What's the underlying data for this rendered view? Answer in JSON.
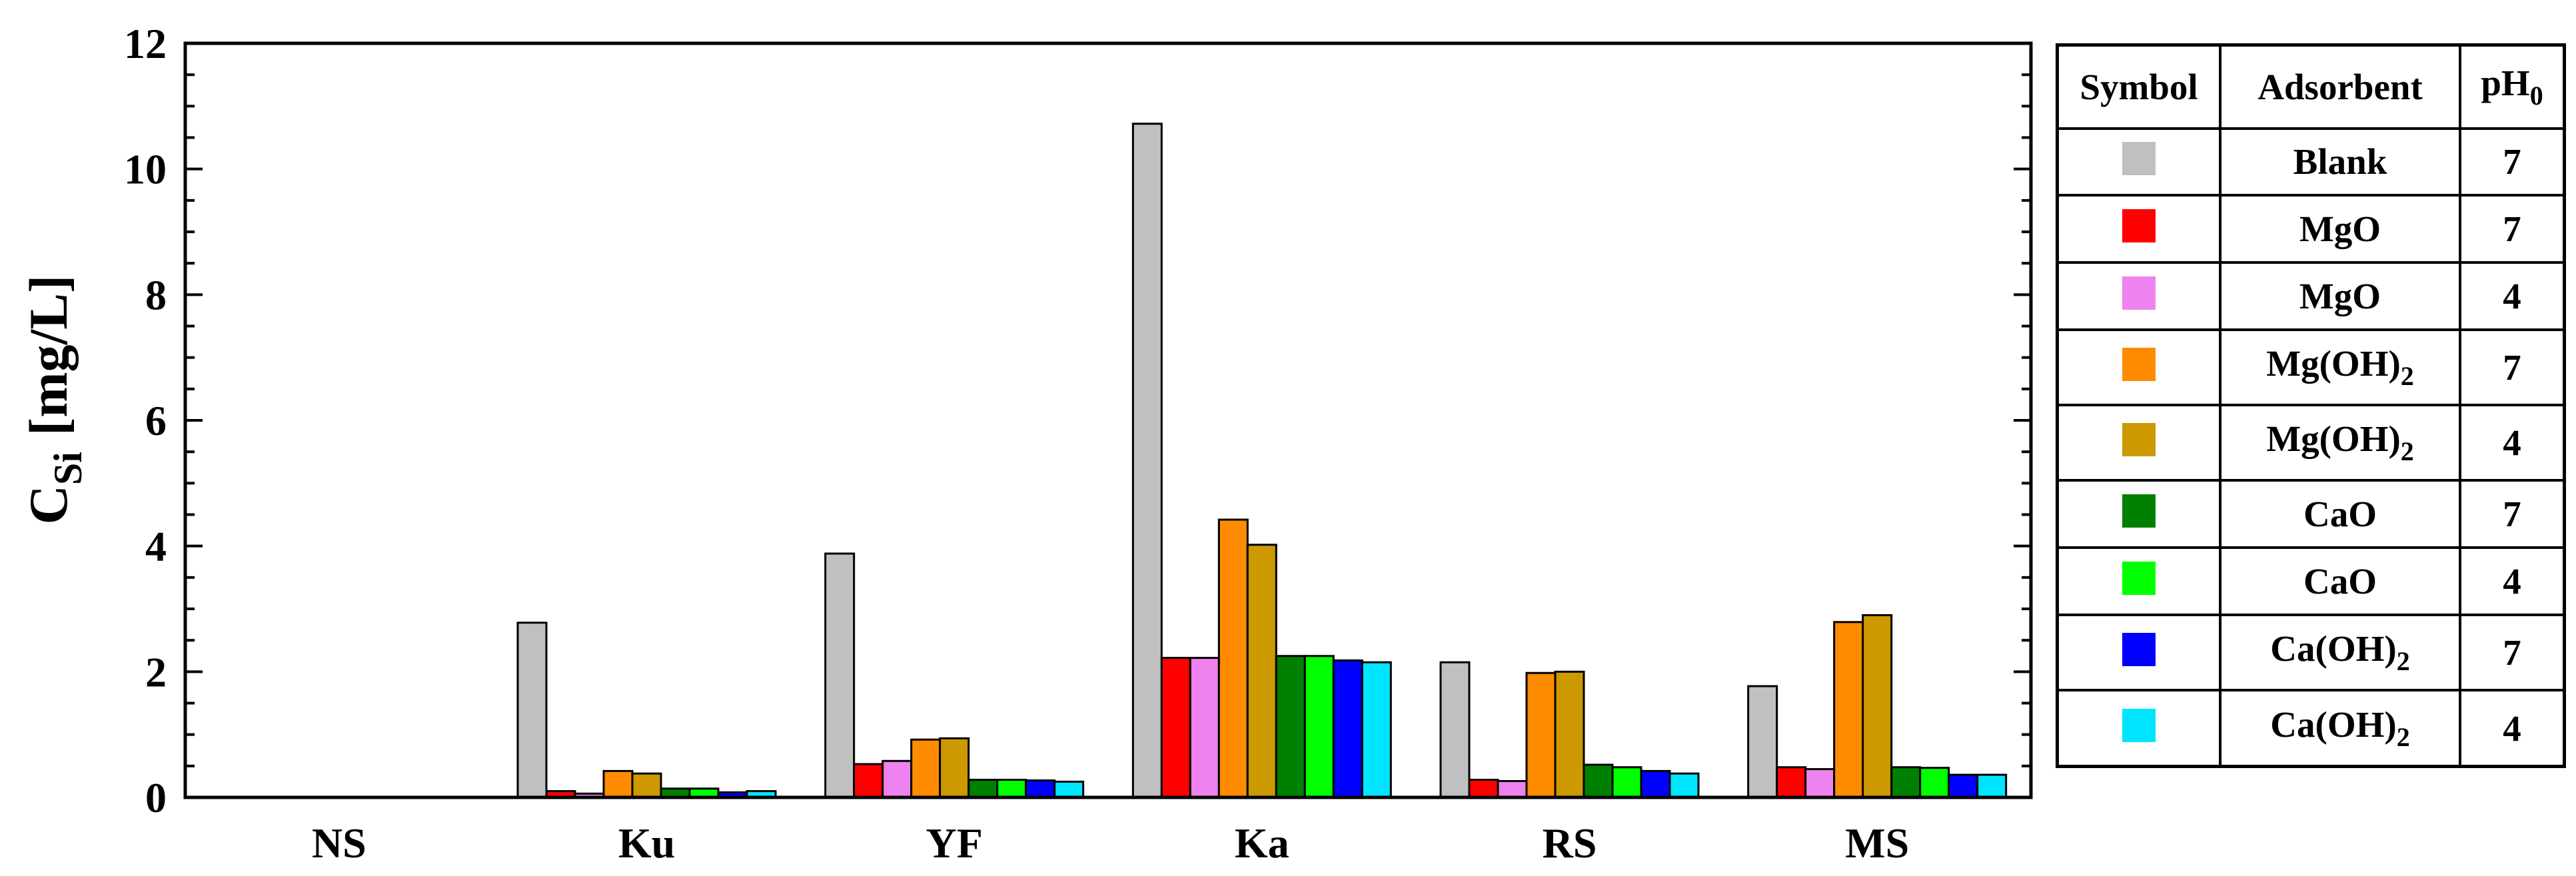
{
  "chart_data": {
    "type": "bar",
    "ylabel_main": "C",
    "ylabel_sub": "Si",
    "ylabel_unit": "[mg/L]",
    "ylim": [
      0,
      12
    ],
    "yticks": [
      "0",
      "2",
      "4",
      "6",
      "8",
      "10",
      "12"
    ],
    "categories": [
      "NS",
      "Ku",
      "YF",
      "Ka",
      "RS",
      "MS"
    ],
    "series": [
      {
        "color": "#c0c0c0",
        "values": [
          0,
          2.78,
          3.88,
          10.72,
          2.15,
          1.77
        ]
      },
      {
        "color": "#ff0000",
        "values": [
          0,
          0.1,
          0.53,
          2.22,
          0.28,
          0.48
        ]
      },
      {
        "color": "#ee82ee",
        "values": [
          0,
          0.06,
          0.58,
          2.22,
          0.26,
          0.45
        ]
      },
      {
        "color": "#ff8c00",
        "values": [
          0,
          0.42,
          0.92,
          4.42,
          1.98,
          2.79
        ]
      },
      {
        "color": "#cc9900",
        "values": [
          0,
          0.38,
          0.94,
          4.02,
          2.0,
          2.9
        ]
      },
      {
        "color": "#008000",
        "values": [
          0,
          0.14,
          0.28,
          2.25,
          0.52,
          0.48
        ]
      },
      {
        "color": "#00ff00",
        "values": [
          0,
          0.14,
          0.28,
          2.25,
          0.48,
          0.47
        ]
      },
      {
        "color": "#0000ff",
        "values": [
          0,
          0.08,
          0.27,
          2.18,
          0.42,
          0.36
        ]
      },
      {
        "color": "#00e5ff",
        "values": [
          0,
          0.1,
          0.25,
          2.15,
          0.38,
          0.36
        ]
      }
    ],
    "grid": false
  },
  "legend": {
    "headers": {
      "symbol": "Symbol",
      "adsorbent": "Adsorbent",
      "ph_main": "pH",
      "ph_sub": "0"
    },
    "rows": [
      {
        "color": "#c0c0c0",
        "adsorbent": "Blank",
        "adsorbent_sub": "",
        "ph": "7"
      },
      {
        "color": "#ff0000",
        "adsorbent": "MgO",
        "adsorbent_sub": "",
        "ph": "7"
      },
      {
        "color": "#ee82ee",
        "adsorbent": "MgO",
        "adsorbent_sub": "",
        "ph": "4"
      },
      {
        "color": "#ff8c00",
        "adsorbent": "Mg(OH)",
        "adsorbent_sub": "2",
        "ph": "7"
      },
      {
        "color": "#cc9900",
        "adsorbent": "Mg(OH)",
        "adsorbent_sub": "2",
        "ph": "4"
      },
      {
        "color": "#008000",
        "adsorbent": "CaO",
        "adsorbent_sub": "",
        "ph": "7"
      },
      {
        "color": "#00ff00",
        "adsorbent": "CaO",
        "adsorbent_sub": "",
        "ph": "4"
      },
      {
        "color": "#0000ff",
        "adsorbent": "Ca(OH)",
        "adsorbent_sub": "2",
        "ph": "7"
      },
      {
        "color": "#00e5ff",
        "adsorbent": "Ca(OH)",
        "adsorbent_sub": "2",
        "ph": "4"
      }
    ]
  }
}
